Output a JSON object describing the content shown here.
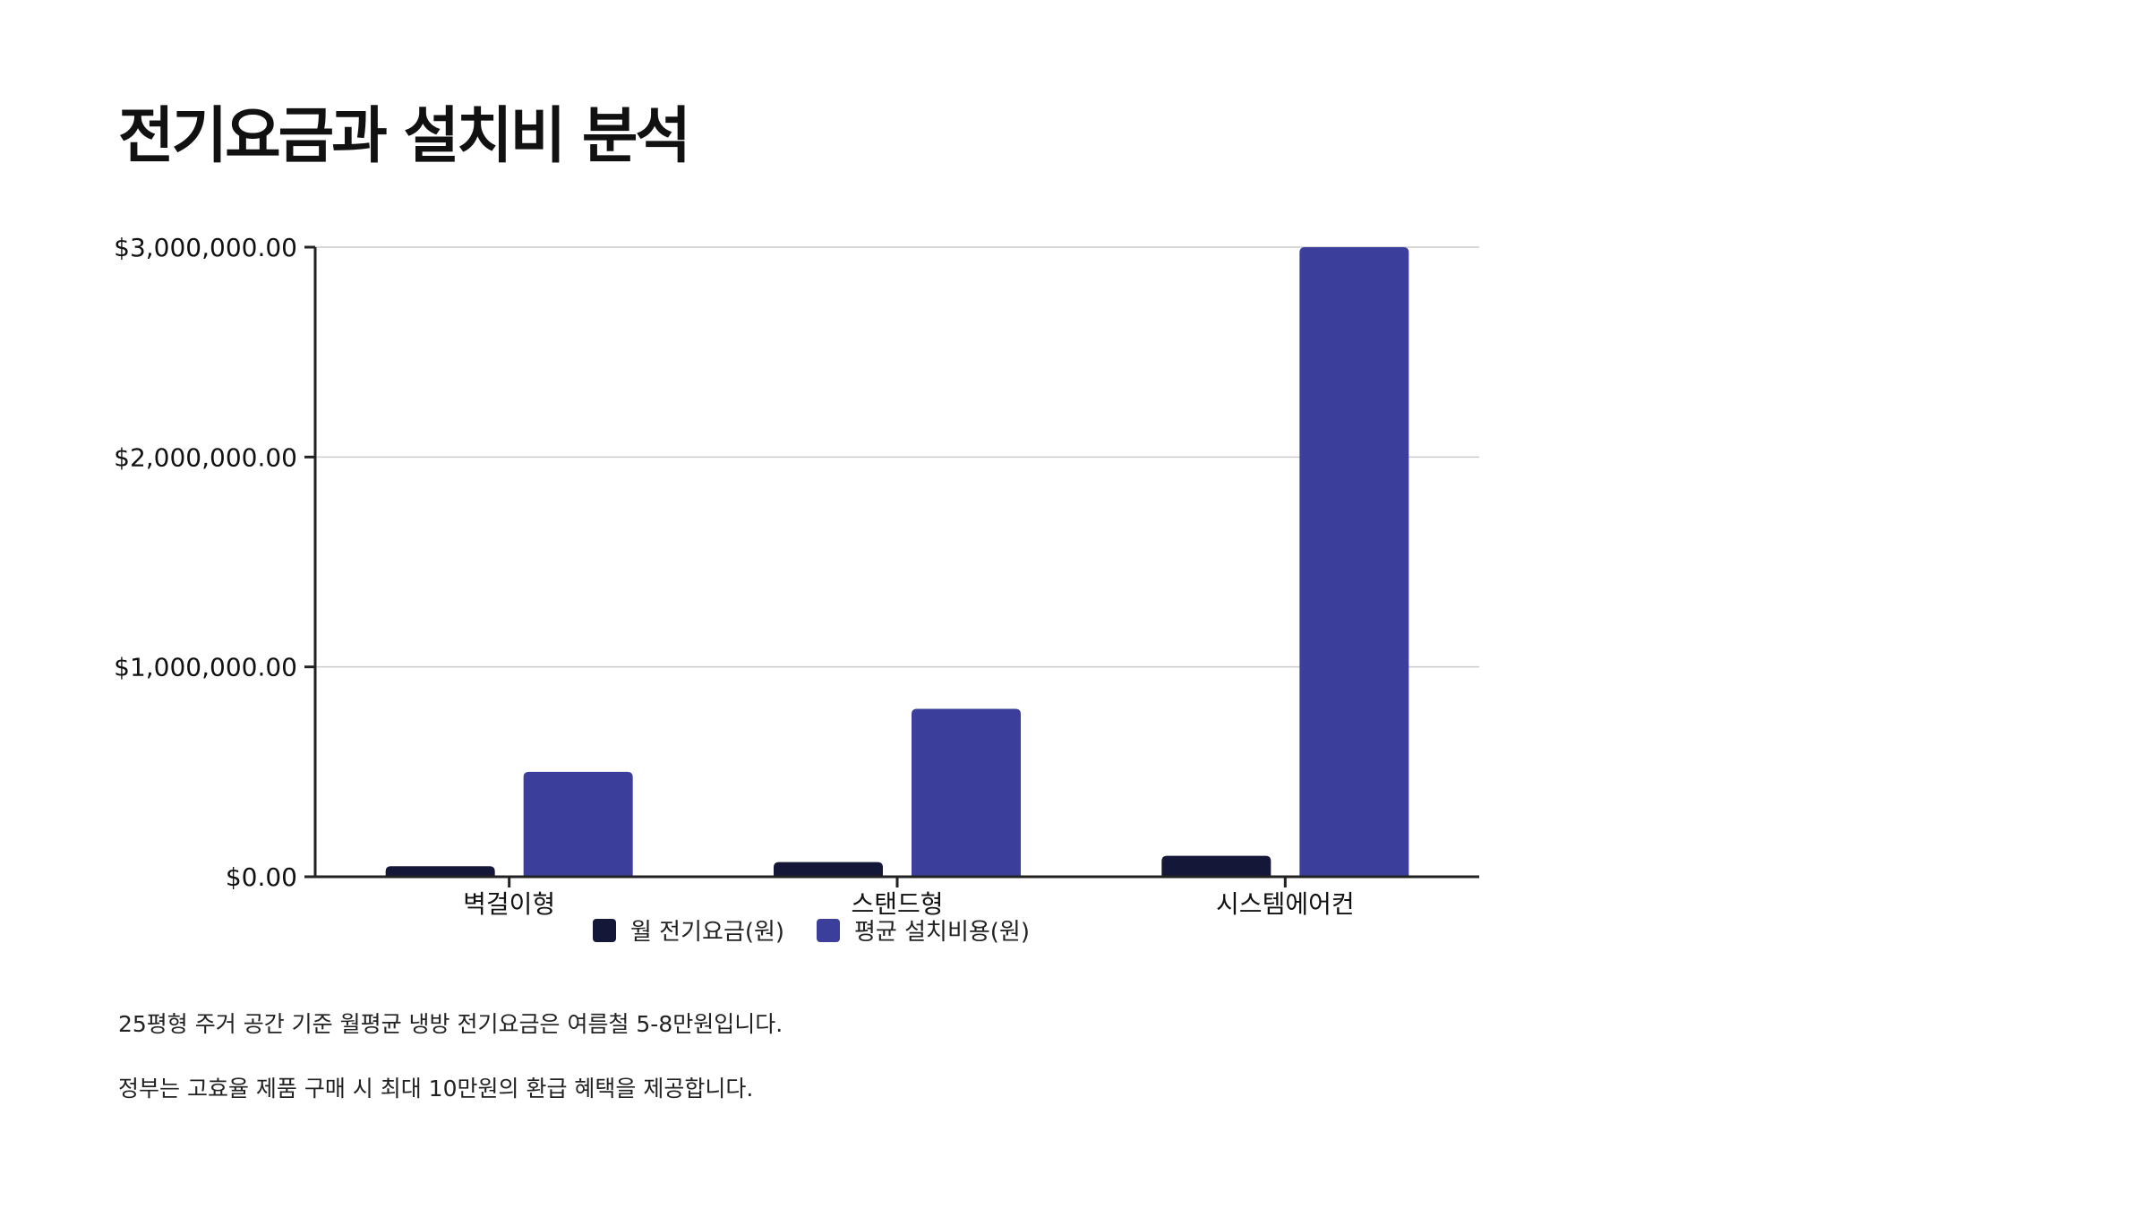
{
  "slide": {
    "title": "전기요금과 설치비 분석",
    "notes": [
      "25평형 주거 공간 기준 월평균 냉방 전기요금은 여름철 5-8만원입니다.",
      "정부는 고효율 제품 구매 시 최대 10만원의 환급 혜택을 제공합니다."
    ]
  },
  "chart_data": {
    "type": "bar",
    "title": "",
    "xlabel": "",
    "ylabel": "",
    "categories": [
      "벽걸이형",
      "스탠드형",
      "시스템에어컨"
    ],
    "series": [
      {
        "name": "월 전기요금(원)",
        "values": [
          50000,
          70000,
          100000
        ],
        "color": "#151738"
      },
      {
        "name": "평균 설치비용(원)",
        "values": [
          500000,
          800000,
          3000000
        ],
        "color": "#3b3f9b"
      }
    ],
    "ylim": [
      0,
      3000000
    ],
    "yticks": [
      {
        "value": 0,
        "label": "$0.00"
      },
      {
        "value": 1000000,
        "label": "$1,000,000.00"
      },
      {
        "value": 2000000,
        "label": "$2,000,000.00"
      },
      {
        "value": 3000000,
        "label": "$3,000,000.00"
      }
    ],
    "grid": true,
    "legend_position": "bottom"
  }
}
